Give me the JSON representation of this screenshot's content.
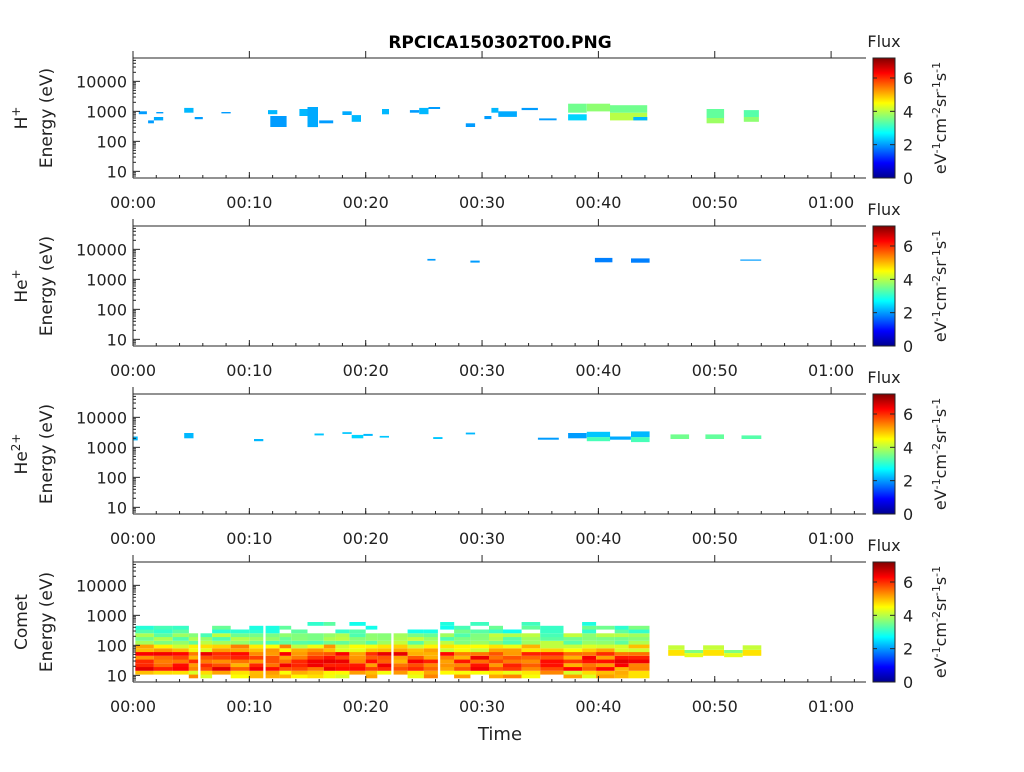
{
  "title": "RPCICA150302T00.PNG",
  "xlabel": "Time",
  "colorbar": {
    "label": "Flux",
    "unit_parts": [
      "eV",
      "-1",
      "cm",
      "-2",
      "sr",
      "-1",
      "s",
      "-1"
    ],
    "ticks": [
      "0",
      "2",
      "4",
      "6"
    ],
    "range": [
      0,
      7.2
    ],
    "colormap": "jet"
  },
  "chart_data": [
    {
      "type": "heatmap",
      "panel_label_base": "H",
      "panel_label_sup": "+",
      "ylabel": "Energy (eV)",
      "x_ticks": [
        "00:00",
        "00:10",
        "00:20",
        "00:30",
        "00:40",
        "00:50",
        "01:00"
      ],
      "y_ticks": [
        "10",
        "100",
        "1000",
        "10000"
      ],
      "y_log": true,
      "xlim_min": [
        0,
        63
      ],
      "ylim_eV": [
        6,
        60000
      ],
      "cells": [
        {
          "t": [
            0.5,
            1.2
          ],
          "e": [
            800,
            1000
          ],
          "v": 2.0
        },
        {
          "t": [
            1.3,
            1.8
          ],
          "e": [
            400,
            500
          ],
          "v": 2.0
        },
        {
          "t": [
            1.8,
            2.6
          ],
          "e": [
            500,
            650
          ],
          "v": 2.1
        },
        {
          "t": [
            2.0,
            2.6
          ],
          "e": [
            850,
            950
          ],
          "v": 2.0
        },
        {
          "t": [
            4.4,
            5.2
          ],
          "e": [
            900,
            1300
          ],
          "v": 2.2
        },
        {
          "t": [
            5.3,
            6.0
          ],
          "e": [
            550,
            650
          ],
          "v": 2.0
        },
        {
          "t": [
            7.6,
            8.4
          ],
          "e": [
            850,
            950
          ],
          "v": 2.0
        },
        {
          "t": [
            11.6,
            12.4
          ],
          "e": [
            800,
            1100
          ],
          "v": 2.2
        },
        {
          "t": [
            11.8,
            13.2
          ],
          "e": [
            300,
            700
          ],
          "v": 2.0
        },
        {
          "t": [
            14.3,
            15.2
          ],
          "e": [
            700,
            1200
          ],
          "v": 2.2
        },
        {
          "t": [
            15.0,
            15.9
          ],
          "e": [
            300,
            1400
          ],
          "v": 2.1
        },
        {
          "t": [
            16.0,
            17.2
          ],
          "e": [
            400,
            500
          ],
          "v": 2.0
        },
        {
          "t": [
            18.0,
            18.8
          ],
          "e": [
            750,
            1000
          ],
          "v": 2.1
        },
        {
          "t": [
            18.8,
            19.6
          ],
          "e": [
            450,
            750
          ],
          "v": 2.2
        },
        {
          "t": [
            21.4,
            22.0
          ],
          "e": [
            800,
            1200
          ],
          "v": 2.2
        },
        {
          "t": [
            23.8,
            24.6
          ],
          "e": [
            900,
            1100
          ],
          "v": 2.0
        },
        {
          "t": [
            24.6,
            25.4
          ],
          "e": [
            800,
            1300
          ],
          "v": 2.2
        },
        {
          "t": [
            25.4,
            26.4
          ],
          "e": [
            1200,
            1400
          ],
          "v": 2.0
        },
        {
          "t": [
            28.6,
            29.4
          ],
          "e": [
            300,
            400
          ],
          "v": 2.0
        },
        {
          "t": [
            30.2,
            30.8
          ],
          "e": [
            550,
            700
          ],
          "v": 2.0
        },
        {
          "t": [
            30.8,
            31.4
          ],
          "e": [
            900,
            1300
          ],
          "v": 2.2
        },
        {
          "t": [
            31.4,
            33.0
          ],
          "e": [
            650,
            1000
          ],
          "v": 2.1
        },
        {
          "t": [
            33.4,
            34.8
          ],
          "e": [
            1100,
            1300
          ],
          "v": 2.0
        },
        {
          "t": [
            34.9,
            36.4
          ],
          "e": [
            500,
            580
          ],
          "v": 2.0
        },
        {
          "t": [
            37.4,
            39.0
          ],
          "e": [
            500,
            800
          ],
          "v": 2.4
        },
        {
          "t": [
            37.4,
            39.0
          ],
          "e": [
            900,
            1800
          ],
          "v": 3.5
        },
        {
          "t": [
            39.0,
            41.0
          ],
          "e": [
            1000,
            1800
          ],
          "v": 3.7
        },
        {
          "t": [
            41.0,
            44.2
          ],
          "e": [
            500,
            900
          ],
          "v": 4.0
        },
        {
          "t": [
            41.0,
            44.2
          ],
          "e": [
            900,
            1600
          ],
          "v": 3.5
        },
        {
          "t": [
            43.0,
            44.2
          ],
          "e": [
            500,
            650
          ],
          "v": 2.2
        },
        {
          "t": [
            49.3,
            50.8
          ],
          "e": [
            400,
            600
          ],
          "v": 3.8
        },
        {
          "t": [
            49.3,
            50.8
          ],
          "e": [
            600,
            1200
          ],
          "v": 3.4
        },
        {
          "t": [
            52.5,
            53.8
          ],
          "e": [
            450,
            650
          ],
          "v": 3.7
        },
        {
          "t": [
            52.5,
            53.8
          ],
          "e": [
            650,
            1100
          ],
          "v": 3.3
        }
      ]
    },
    {
      "type": "heatmap",
      "panel_label_base": "He",
      "panel_label_sup": "+",
      "ylabel": "Energy (eV)",
      "x_ticks": [
        "00:00",
        "00:10",
        "00:20",
        "00:30",
        "00:40",
        "00:50",
        "01:00"
      ],
      "y_ticks": [
        "10",
        "100",
        "1000",
        "10000"
      ],
      "y_log": true,
      "xlim_min": [
        0,
        63
      ],
      "ylim_eV": [
        6,
        60000
      ],
      "cells": [
        {
          "t": [
            25.3,
            26.0
          ],
          "e": [
            4200,
            4800
          ],
          "v": 2.0
        },
        {
          "t": [
            29.0,
            29.8
          ],
          "e": [
            3600,
            4200
          ],
          "v": 2.0
        },
        {
          "t": [
            39.7,
            41.2
          ],
          "e": [
            3700,
            5200
          ],
          "v": 1.8
        },
        {
          "t": [
            42.8,
            44.4
          ],
          "e": [
            3600,
            5000
          ],
          "v": 1.8
        },
        {
          "t": [
            52.2,
            54.0
          ],
          "e": [
            4200,
            4600
          ],
          "v": 2.0
        }
      ]
    },
    {
      "type": "heatmap",
      "panel_label_base": "He",
      "panel_label_sup": "2+",
      "ylabel": "Energy (eV)",
      "x_ticks": [
        "00:00",
        "00:10",
        "00:20",
        "00:30",
        "00:40",
        "00:50",
        "01:00"
      ],
      "y_ticks": [
        "10",
        "100",
        "1000",
        "10000"
      ],
      "y_log": true,
      "xlim_min": [
        0,
        63
      ],
      "ylim_eV": [
        6,
        60000
      ],
      "cells": [
        {
          "t": [
            0.0,
            0.4
          ],
          "e": [
            1700,
            2300
          ],
          "v": 2.2
        },
        {
          "t": [
            4.4,
            5.2
          ],
          "e": [
            2000,
            3000
          ],
          "v": 2.2
        },
        {
          "t": [
            10.4,
            11.2
          ],
          "e": [
            1600,
            1900
          ],
          "v": 2.2
        },
        {
          "t": [
            15.6,
            16.4
          ],
          "e": [
            2500,
            2900
          ],
          "v": 2.3
        },
        {
          "t": [
            18.0,
            18.8
          ],
          "e": [
            2800,
            3200
          ],
          "v": 2.3
        },
        {
          "t": [
            18.8,
            19.8
          ],
          "e": [
            2000,
            2600
          ],
          "v": 2.4
        },
        {
          "t": [
            19.8,
            20.6
          ],
          "e": [
            2400,
            2800
          ],
          "v": 2.2
        },
        {
          "t": [
            21.2,
            22.0
          ],
          "e": [
            2100,
            2400
          ],
          "v": 2.3
        },
        {
          "t": [
            25.8,
            26.6
          ],
          "e": [
            1900,
            2200
          ],
          "v": 2.3
        },
        {
          "t": [
            28.6,
            29.4
          ],
          "e": [
            2700,
            3100
          ],
          "v": 2.2
        },
        {
          "t": [
            34.8,
            36.6
          ],
          "e": [
            1800,
            2100
          ],
          "v": 2.0
        },
        {
          "t": [
            37.4,
            39.0
          ],
          "e": [
            2000,
            3000
          ],
          "v": 2.0
        },
        {
          "t": [
            39.0,
            41.0
          ],
          "e": [
            1600,
            2200
          ],
          "v": 3.2
        },
        {
          "t": [
            39.0,
            41.0
          ],
          "e": [
            2200,
            3300
          ],
          "v": 2.3
        },
        {
          "t": [
            41.0,
            42.8
          ],
          "e": [
            1800,
            2300
          ],
          "v": 2.1
        },
        {
          "t": [
            42.8,
            44.4
          ],
          "e": [
            1500,
            2200
          ],
          "v": 3.2
        },
        {
          "t": [
            42.8,
            44.4
          ],
          "e": [
            2200,
            3400
          ],
          "v": 2.2
        },
        {
          "t": [
            46.2,
            47.8
          ],
          "e": [
            1900,
            2700
          ],
          "v": 3.5
        },
        {
          "t": [
            49.2,
            50.8
          ],
          "e": [
            1900,
            2700
          ],
          "v": 3.4
        },
        {
          "t": [
            52.3,
            54.0
          ],
          "e": [
            1900,
            2500
          ],
          "v": 3.3
        }
      ]
    },
    {
      "type": "heatmap",
      "panel_label_base": "Comet",
      "panel_label_sup": "",
      "ylabel": "Energy (eV)",
      "x_ticks": [
        "00:00",
        "00:10",
        "00:20",
        "00:30",
        "00:40",
        "00:50",
        "01:00"
      ],
      "y_ticks": [
        "10",
        "100",
        "1000",
        "10000"
      ],
      "y_log": true,
      "xlim_min": [
        0,
        63
      ],
      "ylim_eV": [
        6,
        60000
      ],
      "active_blocks_min": [
        [
          0.2,
          1.8
        ],
        [
          1.8,
          3.4
        ],
        [
          3.4,
          4.8
        ],
        [
          4.8,
          5.6
        ],
        [
          5.8,
          6.8
        ],
        [
          6.8,
          8.4
        ],
        [
          8.4,
          10.0
        ],
        [
          10.0,
          11.2
        ],
        [
          11.4,
          12.6
        ],
        [
          12.6,
          13.6
        ],
        [
          13.6,
          15.0
        ],
        [
          15.0,
          16.4
        ],
        [
          16.4,
          17.4
        ],
        [
          17.4,
          18.6
        ],
        [
          18.6,
          20.0
        ],
        [
          20.0,
          21.0
        ],
        [
          21.0,
          22.2
        ],
        [
          22.4,
          23.6
        ],
        [
          23.6,
          25.0
        ],
        [
          25.0,
          26.2
        ],
        [
          26.4,
          27.6
        ],
        [
          27.6,
          29.0
        ],
        [
          29.0,
          30.6
        ],
        [
          30.6,
          31.8
        ],
        [
          31.8,
          33.4
        ],
        [
          33.4,
          35.0
        ],
        [
          35.0,
          37.0
        ],
        [
          37.0,
          38.6
        ],
        [
          38.6,
          39.8
        ],
        [
          39.8,
          41.4
        ],
        [
          41.4,
          42.6
        ],
        [
          42.6,
          44.4
        ]
      ],
      "quiet_blocks_min": [
        [
          46.0,
          47.4,
          1
        ],
        [
          47.4,
          49.0,
          0
        ],
        [
          49.0,
          50.8,
          1
        ],
        [
          50.8,
          52.4,
          0
        ],
        [
          52.4,
          54.0,
          1
        ]
      ]
    }
  ]
}
